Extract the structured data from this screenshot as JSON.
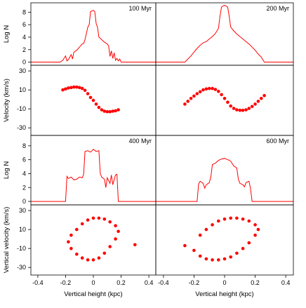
{
  "chart_data": {
    "type": "line",
    "layout": "2x4 panel grid",
    "line_color": "#ff0000",
    "point_color": "#ff0000",
    "x_axis": {
      "label": "Vertical height (kpc)",
      "ticks": [
        -0.4,
        -0.2,
        0.0,
        0.2,
        0.4
      ],
      "xlim": [
        -0.45,
        0.45
      ]
    },
    "row_axes": [
      {
        "ylabel": "Log N",
        "ticks": [
          0,
          2,
          4,
          6,
          8
        ],
        "ylim": [
          -0.5,
          9.5
        ]
      },
      {
        "ylabel": "Velocity (km/s)",
        "ticks": [
          -30,
          -10,
          10,
          30
        ],
        "ylim": [
          -38,
          36
        ]
      },
      {
        "ylabel": "Log N",
        "ticks": [
          0,
          2,
          4,
          6,
          8
        ],
        "ylim": [
          -0.5,
          9.5
        ]
      },
      {
        "ylabel": "Vertical velocity (km/s)",
        "ticks": [
          -30,
          -10,
          10,
          30
        ],
        "ylim": [
          -38,
          36
        ]
      }
    ],
    "panels": [
      {
        "label": "100 Myr",
        "row": 0,
        "col": 0,
        "kind": "histogram",
        "x": [
          -0.45,
          -0.24,
          -0.22,
          -0.2,
          -0.19,
          -0.18,
          -0.16,
          -0.15,
          -0.14,
          -0.12,
          -0.1,
          -0.08,
          -0.07,
          -0.06,
          -0.04,
          -0.03,
          -0.02,
          -0.01,
          0.0,
          0.01,
          0.02,
          0.03,
          0.04,
          0.06,
          0.08,
          0.1,
          0.11,
          0.12,
          0.13,
          0.14,
          0.15,
          0.16,
          0.17,
          0.18,
          0.19,
          0.2,
          0.22,
          0.24,
          0.45
        ],
        "y": [
          0,
          0,
          0.3,
          1.0,
          0.2,
          0.4,
          1.2,
          0.5,
          1.6,
          1.9,
          2.4,
          2.9,
          3.0,
          3.6,
          5.6,
          6.0,
          8.1,
          8.2,
          8.3,
          8.1,
          6.2,
          5.6,
          4.0,
          3.6,
          3.2,
          2.9,
          2.6,
          0.9,
          1.8,
          0.6,
          1.5,
          0.3,
          0.6,
          0.2,
          0.5,
          0.0,
          0.0,
          0.0,
          0.0
        ]
      },
      {
        "label": "200 Myr",
        "row": 0,
        "col": 1,
        "kind": "histogram",
        "x": [
          -0.45,
          -0.26,
          -0.24,
          -0.22,
          -0.2,
          -0.18,
          -0.16,
          -0.14,
          -0.12,
          -0.1,
          -0.08,
          -0.06,
          -0.04,
          -0.03,
          -0.02,
          -0.01,
          0.0,
          0.01,
          0.02,
          0.03,
          0.04,
          0.06,
          0.08,
          0.1,
          0.12,
          0.14,
          0.16,
          0.18,
          0.2,
          0.22,
          0.24,
          0.25,
          0.26,
          0.28,
          0.45
        ],
        "y": [
          0,
          0,
          0.5,
          1.0,
          1.6,
          2.2,
          2.7,
          3.1,
          3.3,
          3.7,
          4.1,
          4.6,
          5.4,
          7.4,
          8.8,
          9.0,
          9.1,
          9.0,
          8.8,
          7.4,
          5.6,
          5.0,
          4.5,
          4.1,
          3.7,
          3.3,
          2.9,
          2.4,
          1.9,
          1.3,
          0.8,
          0.4,
          0.0,
          0.0,
          0.0
        ]
      },
      {
        "label": "400 Myr",
        "row": 2,
        "col": 0,
        "kind": "histogram",
        "x": [
          -0.45,
          -0.2,
          -0.19,
          -0.18,
          -0.16,
          -0.14,
          -0.12,
          -0.1,
          -0.08,
          -0.07,
          -0.06,
          -0.04,
          -0.02,
          0.0,
          0.02,
          0.04,
          0.05,
          0.06,
          0.08,
          0.09,
          0.1,
          0.12,
          0.13,
          0.14,
          0.16,
          0.17,
          0.18,
          0.2,
          0.45
        ],
        "y": [
          0,
          0,
          3.6,
          3.3,
          3.5,
          3.1,
          3.2,
          3.5,
          3.4,
          3.9,
          7.2,
          7.3,
          7.1,
          7.5,
          7.2,
          7.3,
          4.0,
          3.5,
          3.2,
          2.0,
          3.4,
          2.6,
          3.8,
          2.4,
          3.8,
          3.9,
          0.0,
          0.0,
          0.0
        ]
      },
      {
        "label": "600 Myr",
        "row": 2,
        "col": 1,
        "kind": "histogram",
        "x": [
          -0.45,
          -0.18,
          -0.17,
          -0.16,
          -0.14,
          -0.13,
          -0.12,
          -0.1,
          -0.09,
          -0.08,
          -0.06,
          -0.04,
          -0.02,
          0.0,
          0.02,
          0.04,
          0.06,
          0.08,
          0.09,
          0.1,
          0.12,
          0.13,
          0.14,
          0.16,
          0.17,
          0.18,
          0.2,
          0.45
        ],
        "y": [
          0,
          0,
          2.5,
          2.9,
          2.6,
          1.9,
          2.4,
          2.7,
          3.5,
          5.3,
          5.5,
          5.9,
          6.1,
          6.2,
          6.0,
          5.8,
          5.1,
          4.8,
          3.2,
          2.6,
          2.4,
          2.1,
          2.7,
          2.9,
          1.8,
          0.0,
          0.0,
          0.0
        ]
      },
      {
        "label": "",
        "row": 1,
        "col": 0,
        "kind": "scatter",
        "pattern": "s-curve",
        "x": [
          -0.22,
          -0.2,
          -0.18,
          -0.16,
          -0.14,
          -0.12,
          -0.1,
          -0.08,
          -0.06,
          -0.04,
          -0.02,
          0.0,
          0.02,
          0.04,
          0.06,
          0.08,
          0.1,
          0.12,
          0.14,
          0.16,
          0.18
        ],
        "y": [
          10,
          11,
          12,
          12.5,
          13,
          13,
          12.5,
          11.5,
          9.5,
          6,
          2,
          -1,
          -5,
          -8.5,
          -11,
          -12.5,
          -13,
          -13,
          -12.5,
          -12,
          -11
        ]
      },
      {
        "label": "",
        "row": 1,
        "col": 1,
        "kind": "scatter",
        "pattern": "s-curve",
        "x": [
          -0.26,
          -0.24,
          -0.22,
          -0.2,
          -0.18,
          -0.16,
          -0.14,
          -0.12,
          -0.1,
          -0.08,
          -0.06,
          -0.04,
          -0.02,
          0.0,
          0.02,
          0.04,
          0.06,
          0.08,
          0.1,
          0.12,
          0.14,
          0.16,
          0.18,
          0.2,
          0.22,
          0.24,
          0.26
        ],
        "y": [
          -5,
          -2,
          1,
          3.5,
          6,
          8,
          10,
          11,
          11.5,
          11.5,
          10.5,
          8.5,
          5,
          1,
          -3,
          -7,
          -9.5,
          -11,
          -11.5,
          -11.5,
          -11,
          -9.5,
          -7.5,
          -5,
          -2,
          1,
          4
        ]
      },
      {
        "label": "",
        "row": 3,
        "col": 0,
        "kind": "scatter",
        "pattern": "spiral",
        "x": [
          -0.16,
          -0.12,
          -0.08,
          -0.04,
          0.0,
          0.04,
          0.08,
          0.12,
          0.16,
          0.18,
          0.16,
          0.12,
          0.08,
          0.04,
          0.0,
          -0.04,
          -0.08,
          -0.12,
          -0.16,
          -0.18,
          0.3
        ],
        "y": [
          -10,
          -16,
          -20,
          -22,
          -22,
          -20,
          -15,
          -8,
          0,
          8,
          14,
          18,
          21,
          22,
          22,
          20,
          16,
          10,
          4,
          -3,
          -6
        ]
      },
      {
        "label": "",
        "row": 3,
        "col": 1,
        "kind": "scatter",
        "pattern": "spiral",
        "x": [
          -0.2,
          -0.16,
          -0.12,
          -0.08,
          -0.04,
          0.0,
          0.04,
          0.08,
          0.12,
          0.16,
          0.2,
          0.22,
          0.2,
          0.16,
          0.12,
          0.08,
          0.04,
          0.0,
          -0.04,
          -0.08,
          -0.12,
          -0.16,
          -0.26
        ],
        "y": [
          -12,
          -18,
          -21,
          -22,
          -22,
          -21,
          -19,
          -15,
          -10,
          -4,
          4,
          10,
          15,
          19,
          21,
          22,
          22,
          21,
          19,
          15,
          10,
          4,
          -7
        ]
      }
    ]
  }
}
